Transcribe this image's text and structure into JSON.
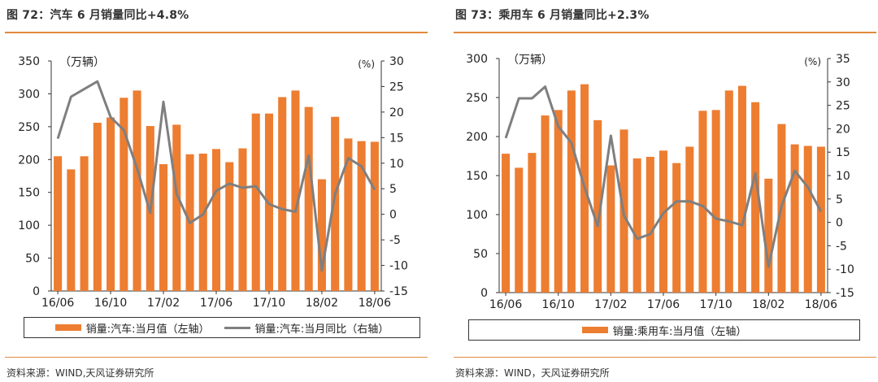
{
  "colors": {
    "bar": "#ed7d31",
    "line": "#7f7f7f",
    "accent_rule": "#e08a3c",
    "axis": "#333333"
  },
  "left_panel": {
    "title": "图 72：汽车 6 月销量同比+4.8%",
    "source": "资料来源：WIND,天风证券研究所"
  },
  "right_panel": {
    "title": "图 73：乘用车 6 月销量同比+2.3%",
    "source": "资料来源：WIND，天风证券研究所"
  },
  "chart_data": [
    {
      "type": "bar+line",
      "left_unit": "（万辆）",
      "right_unit": "(%)",
      "x_tick_labels": [
        "16/06",
        "16/10",
        "17/02",
        "17/06",
        "17/10",
        "18/02",
        "18/06"
      ],
      "x_tick_indices": [
        0,
        4,
        8,
        12,
        16,
        20,
        24
      ],
      "n": 25,
      "ylim_left": [
        0,
        350
      ],
      "yticks_left": [
        0,
        50,
        100,
        150,
        200,
        250,
        300,
        350
      ],
      "ylim_right": [
        -15,
        30
      ],
      "yticks_right": [
        -15,
        -10,
        -5,
        0,
        5,
        10,
        15,
        20,
        25,
        30
      ],
      "series": [
        {
          "name": "销量:汽车:当月值（左轴）",
          "kind": "bar",
          "axis": "left",
          "values": [
            205,
            185,
            205,
            256,
            264,
            294,
            305,
            251,
            193,
            253,
            208,
            209,
            216,
            196,
            217,
            270,
            270,
            295,
            305,
            280,
            170,
            265,
            232,
            228,
            227
          ]
        },
        {
          "name": "销量:汽车:当月同比（右轴）",
          "kind": "line",
          "axis": "right",
          "values": [
            14.8,
            23,
            24.5,
            26,
            19,
            16.5,
            9,
            0.3,
            22,
            4,
            -1.7,
            0,
            4.6,
            6,
            5.2,
            5.5,
            2,
            1,
            0.5,
            11.5,
            -11,
            4,
            11,
            9.4,
            4.8
          ]
        }
      ]
    },
    {
      "type": "bar+line",
      "left_unit": "（万辆）",
      "right_unit": "(%)",
      "x_tick_labels": [
        "16/06",
        "16/10",
        "17/02",
        "17/06",
        "17/10",
        "18/02",
        "18/06"
      ],
      "x_tick_indices": [
        0,
        4,
        8,
        12,
        16,
        20,
        24
      ],
      "n": 25,
      "ylim_left": [
        0,
        300
      ],
      "yticks_left": [
        0,
        50,
        100,
        150,
        200,
        250,
        300
      ],
      "ylim_right": [
        -15,
        35
      ],
      "yticks_right": [
        -15,
        -10,
        -5,
        0,
        5,
        10,
        15,
        20,
        25,
        30,
        35
      ],
      "series": [
        {
          "name": "销量:乘用车:当月值（左轴）",
          "kind": "bar",
          "axis": "left",
          "values": [
            178,
            160,
            179,
            227,
            234,
            259,
            267,
            221,
            163,
            209,
            172,
            174,
            182,
            166,
            187,
            233,
            234,
            259,
            265,
            244,
            146,
            216,
            190,
            188,
            187
          ]
        },
        {
          "kind": "line",
          "axis": "right",
          "values": [
            18,
            26.5,
            26.5,
            29,
            20.5,
            17,
            7.5,
            -0.8,
            18.5,
            1.5,
            -3.5,
            -2.5,
            2,
            4.5,
            4.5,
            3.5,
            0.8,
            0.2,
            -0.6,
            10.5,
            -9.5,
            3.5,
            11,
            7.5,
            2.3
          ]
        }
      ]
    }
  ]
}
